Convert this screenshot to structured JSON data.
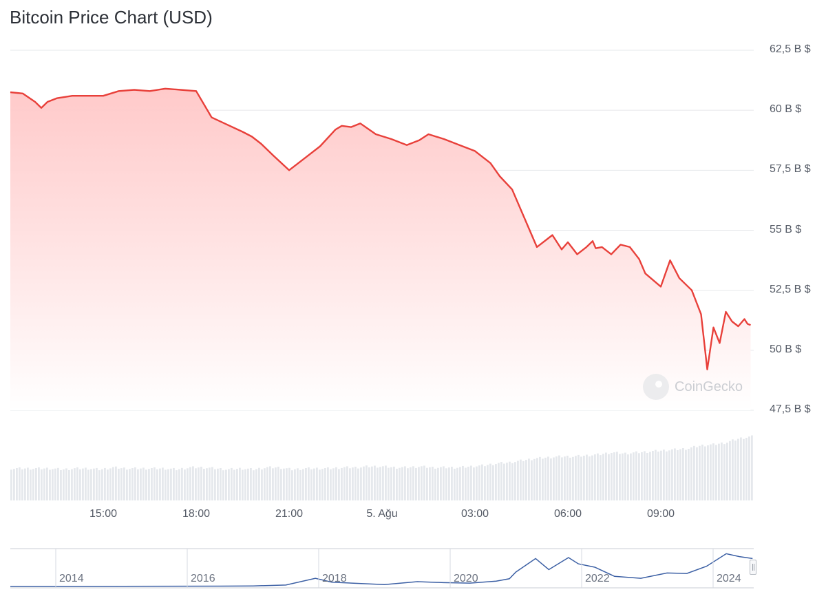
{
  "title": "Bitcoin Price Chart (USD)",
  "watermark": "CoinGecko",
  "colors": {
    "line": "#e8403a",
    "fill_top": "#ffc9c9",
    "volume": "#e5e8ec",
    "navigator": "#3b5fa4",
    "grid": "#e6e8eb"
  },
  "chart_data": [
    {
      "type": "area",
      "title": "Bitcoin Price Chart (USD)",
      "xlabel": "",
      "ylabel": "",
      "x_ticks": [
        "15:00",
        "18:00",
        "21:00",
        "5. Ağu",
        "03:00",
        "06:00",
        "09:00"
      ],
      "y_ticks": [
        "62,5 B $",
        "60 B $",
        "57,5 B $",
        "55 B $",
        "52,5 B $",
        "50 B $",
        "47,5 B $"
      ],
      "ylim": [
        47500,
        62500
      ],
      "grid": true,
      "series": [
        {
          "x_hours": [
            0,
            0.4,
            0.8,
            1.0,
            1.2,
            1.5,
            2.0,
            2.5,
            3.0,
            3.5,
            4.0,
            4.5,
            5.0,
            5.5,
            6.0,
            6.5,
            7.0,
            7.5,
            7.8,
            8.1,
            8.5,
            9.0,
            9.5,
            10.0,
            10.5,
            10.7,
            11.0,
            11.3,
            11.8,
            12.3,
            12.8,
            13.2,
            13.5,
            14.0,
            14.5,
            15.0,
            15.5,
            15.8,
            16.2,
            16.5,
            17.0,
            17.5,
            17.8,
            18.0,
            18.3,
            18.6,
            18.8,
            18.9,
            19.1,
            19.4,
            19.7,
            20.0,
            20.3,
            20.5,
            21.0,
            21.3,
            21.6,
            22.0,
            22.3,
            22.5,
            22.7,
            22.9,
            23.1,
            23.3,
            23.5,
            23.7,
            23.8,
            23.9
          ],
          "values": [
            60750,
            60700,
            60350,
            60100,
            60350,
            60500,
            60600,
            60600,
            60600,
            60800,
            60850,
            60800,
            60900,
            60850,
            60800,
            59700,
            59400,
            59100,
            58900,
            58600,
            58100,
            57500,
            58000,
            58500,
            59200,
            59350,
            59300,
            59450,
            59000,
            58800,
            58550,
            58750,
            59000,
            58800,
            58550,
            58300,
            57800,
            57250,
            56700,
            55800,
            54300,
            54800,
            54200,
            54500,
            54000,
            54300,
            54550,
            54250,
            54300,
            54000,
            54400,
            54300,
            53800,
            53200,
            52650,
            53750,
            53000,
            52500,
            51500,
            49200,
            50950,
            50300,
            51600,
            51200,
            51000,
            51300,
            51100,
            51050
          ]
        }
      ]
    },
    {
      "type": "bar",
      "title": "",
      "series": [
        {
          "values": [
            32,
            32,
            32,
            32,
            31,
            32,
            32,
            31,
            33,
            32,
            32,
            32,
            32,
            31,
            33,
            33,
            32,
            31,
            32,
            31,
            33,
            33,
            31,
            32,
            32,
            32,
            33,
            33,
            34,
            34,
            33,
            33,
            34,
            33,
            33,
            33,
            34,
            35,
            37,
            38,
            40,
            42,
            43,
            44,
            44,
            45,
            46,
            48,
            47,
            48,
            49,
            50,
            51,
            52,
            55,
            56,
            58,
            62,
            64
          ]
        }
      ]
    },
    {
      "type": "line",
      "title": "",
      "x_ticks": [
        "2014",
        "2016",
        "2018",
        "2020",
        "2022",
        "2024"
      ],
      "series": [
        {
          "x": [
            2013.0,
            2015.0,
            2016.5,
            2017.0,
            2017.5,
            2017.95,
            2018.2,
            2018.5,
            2019.0,
            2019.5,
            2019.9,
            2020.3,
            2020.7,
            2020.9,
            2021.0,
            2021.3,
            2021.5,
            2021.8,
            2021.95,
            2022.2,
            2022.5,
            2022.9,
            2023.3,
            2023.6,
            2023.9,
            2024.2,
            2024.4,
            2024.6
          ],
          "values": [
            100,
            300,
            700,
            1200,
            3000,
            17000,
            9000,
            7000,
            4000,
            10000,
            8000,
            7000,
            11000,
            16000,
            30000,
            58000,
            35000,
            60000,
            47000,
            40000,
            21000,
            17000,
            28000,
            27000,
            42000,
            68000,
            62000,
            58000
          ]
        }
      ]
    }
  ]
}
